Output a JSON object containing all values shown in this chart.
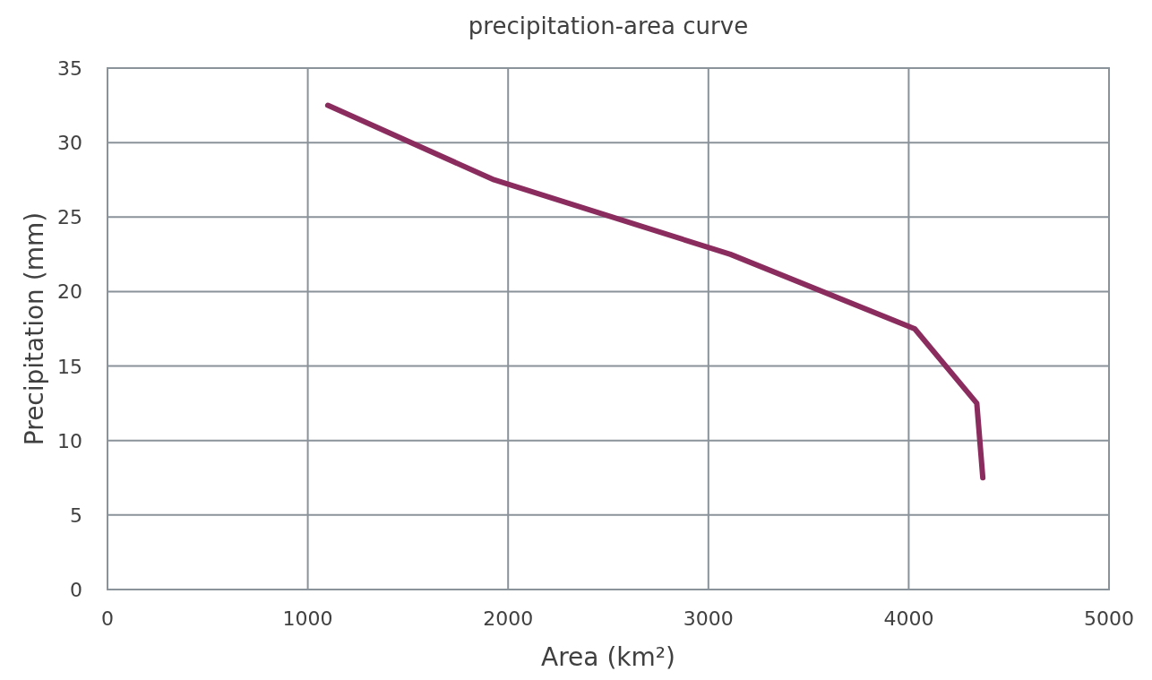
{
  "chart_data": {
    "type": "line",
    "title": "precipitation-area curve",
    "xlabel": "Area (km²)",
    "ylabel": "Precipitation (mm)",
    "x": [
      1100,
      1930,
      3110,
      4030,
      4340,
      4370
    ],
    "series": [
      {
        "color": "#8b2c5f",
        "values": [
          32.5,
          27.5,
          22.5,
          17.5,
          12.5,
          7.5
        ]
      }
    ],
    "xlim": [
      0,
      5000
    ],
    "xticks": [
      0,
      1000,
      2000,
      3000,
      4000,
      5000
    ],
    "ylim": [
      0,
      35
    ],
    "yticks": [
      0,
      5,
      10,
      15,
      20,
      25,
      30,
      35
    ],
    "grid": true,
    "marker": "none",
    "line_style": "solid"
  }
}
